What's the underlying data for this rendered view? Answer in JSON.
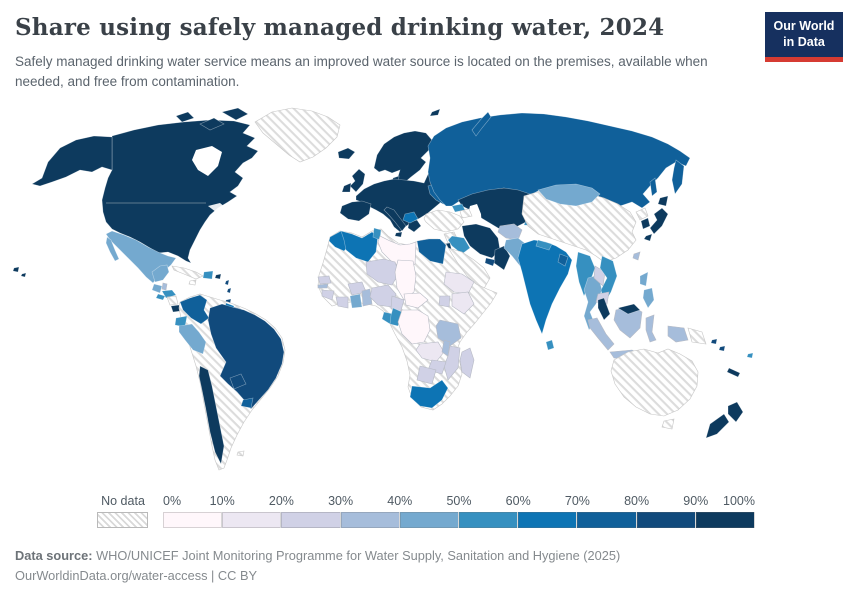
{
  "header": {
    "title": "Share using safely managed drinking water, 2024",
    "subtitle": "Safely managed drinking water service means an improved water source is located on the premises, available when needed, and free from contamination."
  },
  "logo": {
    "line1": "Our World",
    "line2": "in Data",
    "bg": "#16305f",
    "accent": "#d63b32"
  },
  "legend": {
    "no_data_label": "No data",
    "ticks": [
      "0%",
      "10%",
      "20%",
      "30%",
      "40%",
      "50%",
      "60%",
      "70%",
      "80%",
      "90%",
      "100%"
    ],
    "bins": [
      "b1",
      "b2",
      "b3",
      "b4",
      "b5",
      "b6",
      "b7",
      "b8",
      "b9",
      "b10"
    ]
  },
  "footer": {
    "source_label": "Data source:",
    "source_text": " WHO/UNICEF Joint Monitoring Programme for Water Supply, Sanitation and Hygiene (2025)",
    "link_text": "OurWorldinData.org/water-access",
    "license": " | CC BY"
  },
  "map": {
    "palette": {
      "b1": "#fff7fb",
      "b2": "#ece7f2",
      "b3": "#d0d1e6",
      "b4": "#a6bddb",
      "b5": "#74a9cf",
      "b6": "#3690c0",
      "b7": "#0d74b4",
      "b8": "#10609a",
      "b9": "#114a7c",
      "b10": "#0d3a5e"
    },
    "stroke_light": "#b6bac4",
    "stroke_dark": "rgba(255,255,255,0.45)",
    "stroke_nodata": "#c6c6c6",
    "regions": {
      "greenland": "nodata",
      "north-america": "b10",
      "alaska": "b10",
      "arctic-1": "b10",
      "arctic-2": "b10",
      "arctic-3": "b10",
      "hawaii-1": "b10",
      "hawaii-2": "b10",
      "mexico": "b5",
      "guatemala": "b5",
      "belize": "b4",
      "honduras": "b6",
      "el-salvador": "b6",
      "nicaragua": "nodata",
      "costa-rica": "b10",
      "panama": "b6",
      "cuba": "nodata",
      "jamaica": "nodata",
      "dominican-republic": "b6",
      "puerto-rico": "b10",
      "antilles-1": "b9",
      "antilles-2": "b9",
      "trinidad": "b9",
      "south-america-base": "nodata",
      "colombia": "b8",
      "guyana": "b7",
      "suriname": "b9",
      "french-guiana": "b10",
      "ecuador": "b6",
      "peru": "b5",
      "brazil": "b9",
      "paraguay": "b9",
      "uruguay": "b8",
      "chile": "b10",
      "falklands": "nodata",
      "iceland": "b10",
      "scandinavia": "b10",
      "denmark": "b10",
      "uk": "b10",
      "ireland": "b10",
      "europe-mainland": "b10",
      "iberia": "b10",
      "italy": "b10",
      "greece": "b10",
      "balkans-patch": "b7",
      "ukraine": "b8",
      "svalbard": "b10",
      "russia": "b8",
      "kamchatka": "b8",
      "sakhalin": "b8",
      "novaya-zemlya": "b8",
      "kazakhstan-central-asia": "b10",
      "kyrgyzstan": "b6",
      "tajikistan": "b6",
      "turkey": "nodata",
      "georgia": "b6",
      "azerbaijan": "nodata",
      "syria": "nodata",
      "iraq": "b6",
      "iran": "b10",
      "israel-jordan": "b10",
      "saudi-arabia": "nodata",
      "yemen": "nodata",
      "oman": "b10",
      "uae": "b9",
      "afghanistan": "b4",
      "pakistan": "b5",
      "india": "b7",
      "nepal": "b6",
      "bangladesh": "b8",
      "sri-lanka": "b6",
      "china": "nodata",
      "mongolia": "b5",
      "north-korea": "nodata",
      "south-korea": "b10",
      "japan-honshu": "b10",
      "japan-hokkaido": "b10",
      "japan-kyushu": "b10",
      "taiwan": "b4",
      "myanmar": "b6",
      "thailand": "b5",
      "laos": "b3",
      "vietnam": "b6",
      "cambodia": "b3",
      "malaysia-peninsula": "b10",
      "malaysia-borneo": "b10",
      "indonesia-sumatra": "b4",
      "indonesia-java": "b4",
      "indonesia-borneo": "b4",
      "indonesia-sulawesi": "b4",
      "indonesia-papua": "b4",
      "papua-new-guinea": "nodata",
      "philippines-1": "b5",
      "philippines-2": "b5",
      "africa-base": "nodata",
      "morocco": "b7",
      "algeria": "b7",
      "tunisia": "b6",
      "libya": "b1",
      "egypt": "b8",
      "niger": "b3",
      "chad": "b1",
      "senegal": "b3",
      "gambia": "b4",
      "guinea": "b3",
      "cote-divoire": "b3",
      "burkina-faso": "b3",
      "ghana": "b5",
      "togo-benin": "b4",
      "nigeria": "b3",
      "cameroon": "b3",
      "central-african-republic": "b1",
      "ethiopia": "b2",
      "kenya": "b2",
      "uganda": "b3",
      "gabon": "b6",
      "congo": "b6",
      "dr-congo": "b1",
      "tanzania": "b4",
      "zambia": "b2",
      "malawi": "b4",
      "mozambique": "b3",
      "zimbabwe": "b3",
      "botswana": "b3",
      "south-africa": "b7",
      "madagascar": "b3",
      "australia": "nodata",
      "tasmania": "nodata",
      "new-zealand-north": "b10",
      "new-zealand-south": "b10",
      "new-caledonia": "b10",
      "fiji": "b6",
      "solomon-1": "b9",
      "solomon-2": "b9"
    }
  },
  "chart_data": {
    "type": "choropleth",
    "title": "Share using safely managed drinking water, 2024",
    "unit": "%",
    "legend_position": "bottom",
    "bin_ranges": {
      "b1": "0-10%",
      "b2": "10-20%",
      "b3": "20-30%",
      "b4": "30-40%",
      "b5": "40-50%",
      "b6": "50-60%",
      "b7": "60-70%",
      "b8": "70-80%",
      "b9": "80-90%",
      "b10": "90-100%",
      "nodata": "No data"
    },
    "notable_values": {
      "united-states": "90-100%",
      "canada": "90-100%",
      "western-europe": "90-100%",
      "russia": "70-80%",
      "kazakhstan": "90-100%",
      "china": "No data",
      "mongolia": "40-50%",
      "india": "60-70%",
      "brazil": "80-90%",
      "mexico": "40-50%",
      "peru": "40-50%",
      "australia": "No data",
      "new-zealand": "90-100%",
      "japan": "90-100%",
      "south-africa": "60-70%",
      "dr-congo": "0-10%",
      "chad": "0-10%",
      "libya": "0-10%",
      "ethiopia": "10-20%",
      "nigeria": "20-30%",
      "egypt": "70-80%",
      "algeria": "60-70%",
      "iran": "90-100%",
      "saudi-arabia": "No data",
      "turkey": "No data",
      "greenland": "No data"
    }
  }
}
